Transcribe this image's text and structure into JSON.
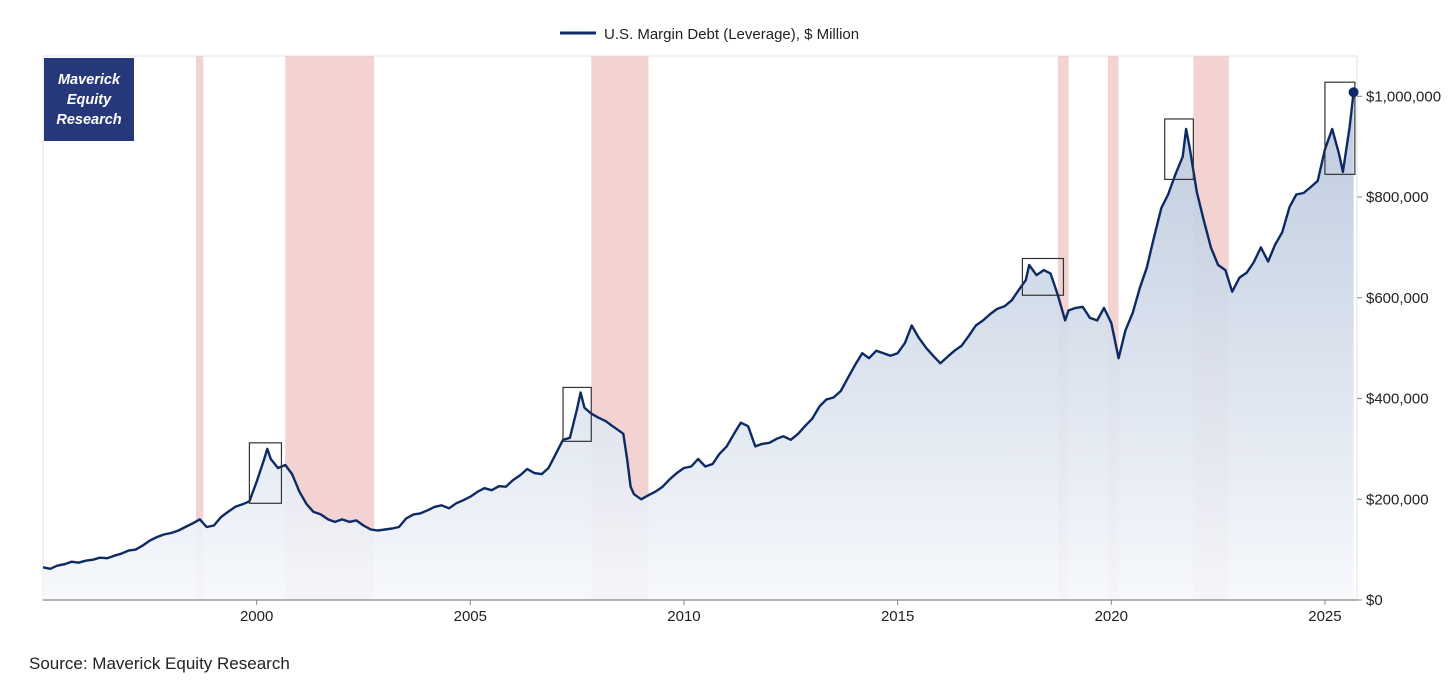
{
  "colors": {
    "line": "#0d2a66",
    "area_top": "#b7c6db",
    "area_bottom": "#f6f8fc",
    "recession": "#eec4c3",
    "logo_bg": "#26387a",
    "box_stroke": "#333333",
    "axis": "#888888"
  },
  "logo": {
    "lines": [
      "Maverick",
      "Equity",
      "Research"
    ]
  },
  "source_text": "Source: Maverick Equity Research",
  "chart_data": {
    "type": "area",
    "title": "",
    "xlabel": "",
    "ylabel": "",
    "legend": {
      "position": "top-center",
      "entries": [
        "U.S. Margin Debt (Leverage), $ Million"
      ]
    },
    "x_range": [
      1995.0,
      2025.75
    ],
    "y_range": [
      0,
      1080000
    ],
    "x_ticks": [
      {
        "value": 2000,
        "label": "2000"
      },
      {
        "value": 2005,
        "label": "2005"
      },
      {
        "value": 2010,
        "label": "2010"
      },
      {
        "value": 2015,
        "label": "2015"
      },
      {
        "value": 2020,
        "label": "2020"
      },
      {
        "value": 2025,
        "label": "2025"
      }
    ],
    "y_ticks": [
      {
        "value": 0,
        "label": "$0"
      },
      {
        "value": 200000,
        "label": "$200,000"
      },
      {
        "value": 400000,
        "label": "$400,000"
      },
      {
        "value": 600000,
        "label": "$600,000"
      },
      {
        "value": 800000,
        "label": "$800,000"
      },
      {
        "value": 1000000,
        "label": "$1,000,000"
      }
    ],
    "grid": false,
    "recessions": [
      [
        1998.58,
        1998.75
      ],
      [
        2000.67,
        2002.75
      ],
      [
        2007.83,
        2009.17
      ],
      [
        2018.75,
        2019.0
      ],
      [
        2019.92,
        2020.17
      ],
      [
        2021.92,
        2022.75
      ]
    ],
    "highlight_boxes": [
      {
        "x": [
          1999.83,
          2000.58
        ],
        "y": [
          192000,
          312000
        ]
      },
      {
        "x": [
          2007.17,
          2007.83
        ],
        "y": [
          315000,
          422000
        ]
      },
      {
        "x": [
          2017.92,
          2018.88
        ],
        "y": [
          605000,
          678000
        ]
      },
      {
        "x": [
          2021.25,
          2021.92
        ],
        "y": [
          835000,
          955000
        ]
      },
      {
        "x": [
          2025.0,
          2025.7
        ],
        "y": [
          845000,
          1028000
        ]
      }
    ],
    "series": [
      {
        "name": "U.S. Margin Debt (Leverage), $ Million",
        "points": [
          [
            1995.0,
            65000
          ],
          [
            1995.17,
            62000
          ],
          [
            1995.33,
            68000
          ],
          [
            1995.5,
            71000
          ],
          [
            1995.67,
            76000
          ],
          [
            1995.83,
            74000
          ],
          [
            1996.0,
            78000
          ],
          [
            1996.17,
            80000
          ],
          [
            1996.33,
            84000
          ],
          [
            1996.5,
            83000
          ],
          [
            1996.67,
            88000
          ],
          [
            1996.83,
            92000
          ],
          [
            1997.0,
            98000
          ],
          [
            1997.17,
            100000
          ],
          [
            1997.33,
            108000
          ],
          [
            1997.5,
            118000
          ],
          [
            1997.67,
            125000
          ],
          [
            1997.83,
            130000
          ],
          [
            1998.0,
            133000
          ],
          [
            1998.17,
            138000
          ],
          [
            1998.33,
            145000
          ],
          [
            1998.5,
            152000
          ],
          [
            1998.67,
            160000
          ],
          [
            1998.83,
            145000
          ],
          [
            1999.0,
            148000
          ],
          [
            1999.17,
            165000
          ],
          [
            1999.33,
            175000
          ],
          [
            1999.5,
            185000
          ],
          [
            1999.67,
            190000
          ],
          [
            1999.83,
            196000
          ],
          [
            2000.0,
            235000
          ],
          [
            2000.17,
            278000
          ],
          [
            2000.25,
            300000
          ],
          [
            2000.33,
            280000
          ],
          [
            2000.5,
            262000
          ],
          [
            2000.67,
            268000
          ],
          [
            2000.83,
            250000
          ],
          [
            2001.0,
            215000
          ],
          [
            2001.17,
            190000
          ],
          [
            2001.33,
            175000
          ],
          [
            2001.5,
            170000
          ],
          [
            2001.67,
            160000
          ],
          [
            2001.83,
            155000
          ],
          [
            2002.0,
            160000
          ],
          [
            2002.17,
            155000
          ],
          [
            2002.33,
            158000
          ],
          [
            2002.5,
            148000
          ],
          [
            2002.67,
            140000
          ],
          [
            2002.83,
            138000
          ],
          [
            2003.0,
            140000
          ],
          [
            2003.17,
            142000
          ],
          [
            2003.33,
            145000
          ],
          [
            2003.5,
            162000
          ],
          [
            2003.67,
            170000
          ],
          [
            2003.83,
            172000
          ],
          [
            2004.0,
            178000
          ],
          [
            2004.17,
            185000
          ],
          [
            2004.33,
            188000
          ],
          [
            2004.5,
            182000
          ],
          [
            2004.67,
            192000
          ],
          [
            2004.83,
            198000
          ],
          [
            2005.0,
            205000
          ],
          [
            2005.17,
            215000
          ],
          [
            2005.33,
            222000
          ],
          [
            2005.5,
            218000
          ],
          [
            2005.67,
            226000
          ],
          [
            2005.83,
            225000
          ],
          [
            2006.0,
            238000
          ],
          [
            2006.17,
            248000
          ],
          [
            2006.33,
            260000
          ],
          [
            2006.5,
            252000
          ],
          [
            2006.67,
            250000
          ],
          [
            2006.83,
            262000
          ],
          [
            2007.0,
            290000
          ],
          [
            2007.17,
            318000
          ],
          [
            2007.33,
            322000
          ],
          [
            2007.5,
            380000
          ],
          [
            2007.58,
            412000
          ],
          [
            2007.67,
            382000
          ],
          [
            2007.83,
            370000
          ],
          [
            2008.0,
            362000
          ],
          [
            2008.17,
            355000
          ],
          [
            2008.33,
            345000
          ],
          [
            2008.5,
            335000
          ],
          [
            2008.58,
            330000
          ],
          [
            2008.67,
            280000
          ],
          [
            2008.75,
            225000
          ],
          [
            2008.83,
            210000
          ],
          [
            2009.0,
            200000
          ],
          [
            2009.17,
            208000
          ],
          [
            2009.33,
            215000
          ],
          [
            2009.5,
            225000
          ],
          [
            2009.67,
            240000
          ],
          [
            2009.83,
            252000
          ],
          [
            2010.0,
            262000
          ],
          [
            2010.17,
            265000
          ],
          [
            2010.33,
            280000
          ],
          [
            2010.5,
            265000
          ],
          [
            2010.67,
            270000
          ],
          [
            2010.83,
            290000
          ],
          [
            2011.0,
            305000
          ],
          [
            2011.17,
            330000
          ],
          [
            2011.33,
            352000
          ],
          [
            2011.5,
            345000
          ],
          [
            2011.67,
            305000
          ],
          [
            2011.83,
            310000
          ],
          [
            2012.0,
            312000
          ],
          [
            2012.17,
            320000
          ],
          [
            2012.33,
            325000
          ],
          [
            2012.5,
            318000
          ],
          [
            2012.67,
            330000
          ],
          [
            2012.83,
            345000
          ],
          [
            2013.0,
            360000
          ],
          [
            2013.17,
            384000
          ],
          [
            2013.33,
            398000
          ],
          [
            2013.5,
            402000
          ],
          [
            2013.67,
            415000
          ],
          [
            2013.83,
            440000
          ],
          [
            2014.0,
            466000
          ],
          [
            2014.17,
            490000
          ],
          [
            2014.33,
            480000
          ],
          [
            2014.5,
            495000
          ],
          [
            2014.67,
            490000
          ],
          [
            2014.83,
            485000
          ],
          [
            2015.0,
            490000
          ],
          [
            2015.17,
            510000
          ],
          [
            2015.33,
            545000
          ],
          [
            2015.5,
            520000
          ],
          [
            2015.67,
            500000
          ],
          [
            2015.83,
            485000
          ],
          [
            2016.0,
            470000
          ],
          [
            2016.17,
            483000
          ],
          [
            2016.33,
            495000
          ],
          [
            2016.5,
            505000
          ],
          [
            2016.67,
            525000
          ],
          [
            2016.83,
            545000
          ],
          [
            2017.0,
            555000
          ],
          [
            2017.17,
            568000
          ],
          [
            2017.33,
            578000
          ],
          [
            2017.5,
            583000
          ],
          [
            2017.67,
            595000
          ],
          [
            2017.83,
            615000
          ],
          [
            2018.0,
            635000
          ],
          [
            2018.08,
            665000
          ],
          [
            2018.25,
            645000
          ],
          [
            2018.42,
            655000
          ],
          [
            2018.58,
            648000
          ],
          [
            2018.75,
            605000
          ],
          [
            2018.92,
            555000
          ],
          [
            2019.0,
            575000
          ],
          [
            2019.17,
            580000
          ],
          [
            2019.33,
            582000
          ],
          [
            2019.5,
            560000
          ],
          [
            2019.67,
            555000
          ],
          [
            2019.83,
            580000
          ],
          [
            2020.0,
            550000
          ],
          [
            2020.17,
            480000
          ],
          [
            2020.33,
            535000
          ],
          [
            2020.5,
            570000
          ],
          [
            2020.67,
            620000
          ],
          [
            2020.83,
            660000
          ],
          [
            2021.0,
            720000
          ],
          [
            2021.17,
            778000
          ],
          [
            2021.33,
            805000
          ],
          [
            2021.5,
            845000
          ],
          [
            2021.67,
            880000
          ],
          [
            2021.75,
            935000
          ],
          [
            2021.83,
            900000
          ],
          [
            2022.0,
            810000
          ],
          [
            2022.17,
            752000
          ],
          [
            2022.33,
            700000
          ],
          [
            2022.5,
            665000
          ],
          [
            2022.67,
            655000
          ],
          [
            2022.83,
            612000
          ],
          [
            2023.0,
            640000
          ],
          [
            2023.17,
            650000
          ],
          [
            2023.33,
            670000
          ],
          [
            2023.5,
            700000
          ],
          [
            2023.67,
            672000
          ],
          [
            2023.83,
            705000
          ],
          [
            2024.0,
            730000
          ],
          [
            2024.17,
            780000
          ],
          [
            2024.33,
            805000
          ],
          [
            2024.5,
            808000
          ],
          [
            2024.67,
            820000
          ],
          [
            2024.83,
            832000
          ],
          [
            2025.0,
            895000
          ],
          [
            2025.17,
            935000
          ],
          [
            2025.33,
            885000
          ],
          [
            2025.42,
            850000
          ],
          [
            2025.58,
            940000
          ],
          [
            2025.67,
            1008000
          ]
        ]
      }
    ]
  }
}
